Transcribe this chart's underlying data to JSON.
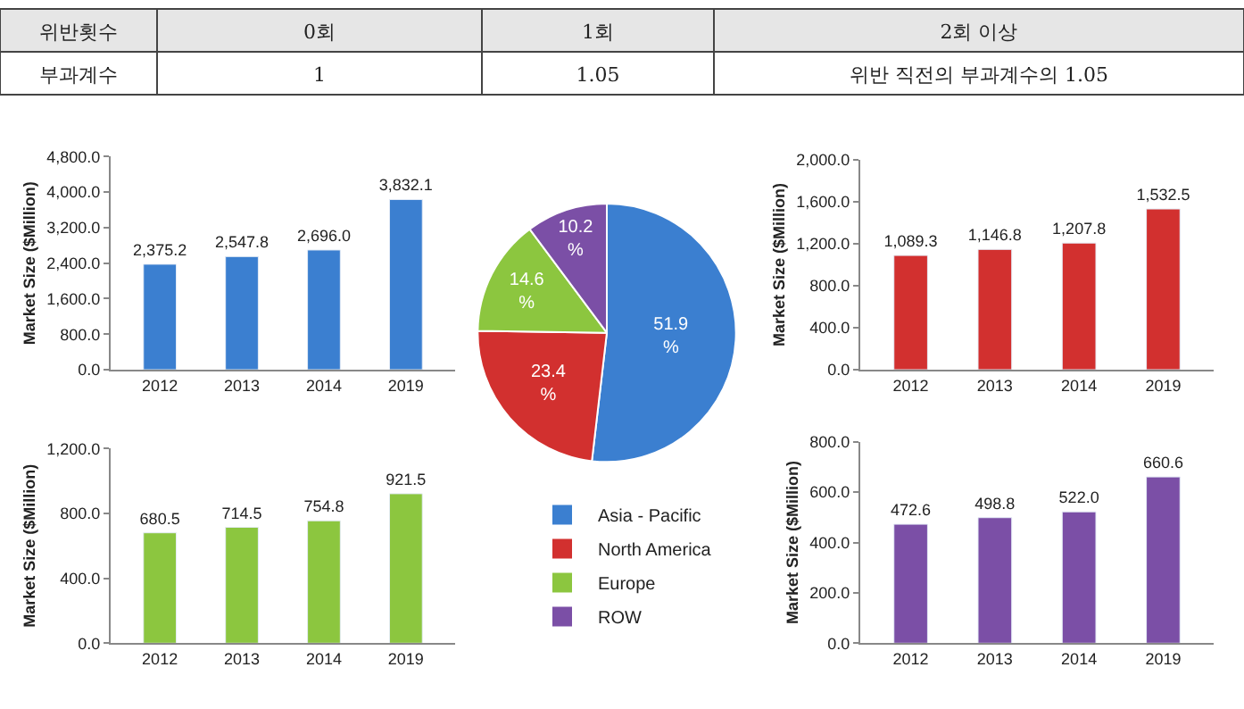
{
  "chart_data": [
    {
      "type": "other",
      "annotations": [
        "위반횟수",
        "0회",
        "1회",
        "2회 이상",
        "부과계수",
        "1",
        "1.05",
        "위반 직전의 부과계수의 1.05"
      ]
    },
    {
      "type": "bar",
      "ylabel": "Market Size ($Million)",
      "categories": [
        "2012",
        "2013",
        "2014",
        "2019"
      ],
      "values": [
        2375.2,
        2547.8,
        2696.0,
        3832.1
      ],
      "value_labels": [
        "2,375.2",
        "2,547.8",
        "2,696.0",
        "3,832.1"
      ],
      "color": "#3b7fd0",
      "ylim": [
        0,
        4800
      ],
      "yticks": [
        {
          "value": 0,
          "label": "0.0"
        },
        {
          "value": 800,
          "label": "800.0"
        },
        {
          "value": 1600,
          "label": "1,600.0"
        },
        {
          "value": 2400,
          "label": "2,400.0"
        },
        {
          "value": 3200,
          "label": "3,200.0"
        },
        {
          "value": 4000,
          "label": "4,000.0"
        },
        {
          "value": 4800,
          "label": "4,800.0"
        }
      ]
    },
    {
      "type": "pie",
      "categories": [
        "Asia - Pacific",
        "North America",
        "Europe",
        "ROW"
      ],
      "values": [
        51.9,
        23.4,
        14.6,
        10.2
      ],
      "value_labels": [
        "51.9 %",
        "23.4 %",
        "14.6 %",
        "10.2 %"
      ],
      "colors": [
        "#3b7fd0",
        "#d2302f",
        "#8cc63f",
        "#7b4fa6"
      ],
      "legend": "bottom"
    },
    {
      "type": "bar",
      "ylabel": "Market Size ($Million)",
      "categories": [
        "2012",
        "2013",
        "2014",
        "2019"
      ],
      "values": [
        1089.3,
        1146.8,
        1207.8,
        1532.5
      ],
      "value_labels": [
        "1,089.3",
        "1,146.8",
        "1,207.8",
        "1,532.5"
      ],
      "color": "#d2302f",
      "ylim": [
        0,
        2000
      ],
      "yticks": [
        {
          "value": 0,
          "label": "0.0"
        },
        {
          "value": 400,
          "label": "400.0"
        },
        {
          "value": 800,
          "label": "800.0"
        },
        {
          "value": 1200,
          "label": "1,200.0"
        },
        {
          "value": 1600,
          "label": "1,600.0"
        },
        {
          "value": 2000,
          "label": "2,000.0"
        }
      ]
    },
    {
      "type": "bar",
      "ylabel": "Market Size ($Million)",
      "categories": [
        "2012",
        "2013",
        "2014",
        "2019"
      ],
      "values": [
        680.5,
        714.5,
        754.8,
        921.5
      ],
      "value_labels": [
        "680.5",
        "714.5",
        "754.8",
        "921.5"
      ],
      "color": "#8cc63f",
      "ylim": [
        0,
        1200
      ],
      "yticks": [
        {
          "value": 0,
          "label": "0.0"
        },
        {
          "value": 400,
          "label": "400.0"
        },
        {
          "value": 800,
          "label": "800.0"
        },
        {
          "value": 1200,
          "label": "1,200.0"
        }
      ]
    },
    {
      "type": "bar",
      "ylabel": "Market Size ($Million)",
      "categories": [
        "2012",
        "2013",
        "2014",
        "2019"
      ],
      "values": [
        472.6,
        498.8,
        522.0,
        660.6
      ],
      "value_labels": [
        "472.6",
        "498.8",
        "522.0",
        "660.6"
      ],
      "color": "#7b4fa6",
      "ylim": [
        0,
        800
      ],
      "yticks": [
        {
          "value": 0,
          "label": "0.0"
        },
        {
          "value": 200,
          "label": "200.0"
        },
        {
          "value": 400,
          "label": "400.0"
        },
        {
          "value": 600,
          "label": "600.0"
        },
        {
          "value": 800,
          "label": "800.0"
        }
      ]
    }
  ]
}
